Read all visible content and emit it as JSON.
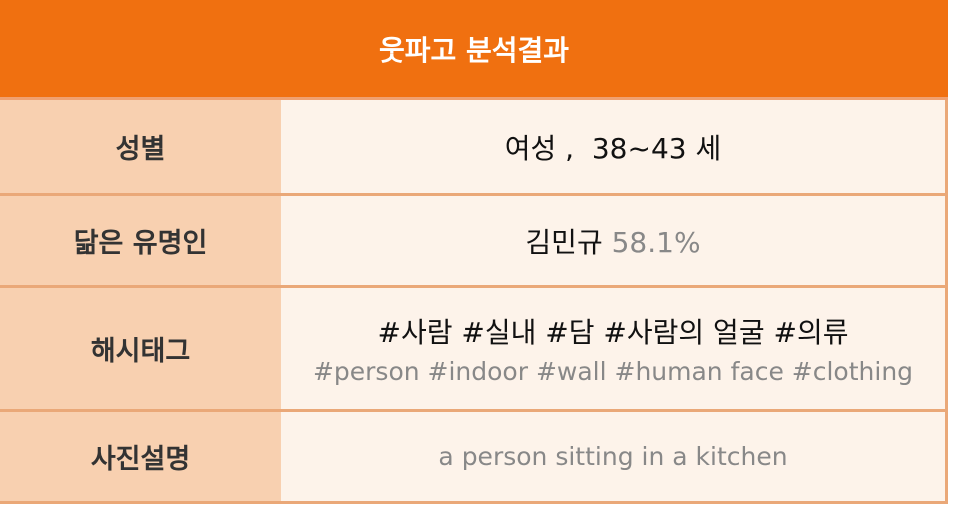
{
  "title": "웃파고 분석결과",
  "rows": {
    "gender": {
      "label": "성별",
      "value": "여성 ,  38~43 세"
    },
    "celebrity": {
      "label": "닮은 유명인",
      "name": "김민규",
      "score": "58.1%"
    },
    "hashtags": {
      "label": "해시태그",
      "korean": "#사람 #실내 #담 #사람의 얼굴 #의류",
      "english": "#person #indoor #wall #human face #clothing"
    },
    "description": {
      "label": "사진설명",
      "value": "a person sitting in a kitchen"
    }
  },
  "colors": {
    "header": "#f07010",
    "label_bg": "#f8d0b0",
    "value_bg": "#fdf3ea",
    "border": "#eaa878"
  }
}
